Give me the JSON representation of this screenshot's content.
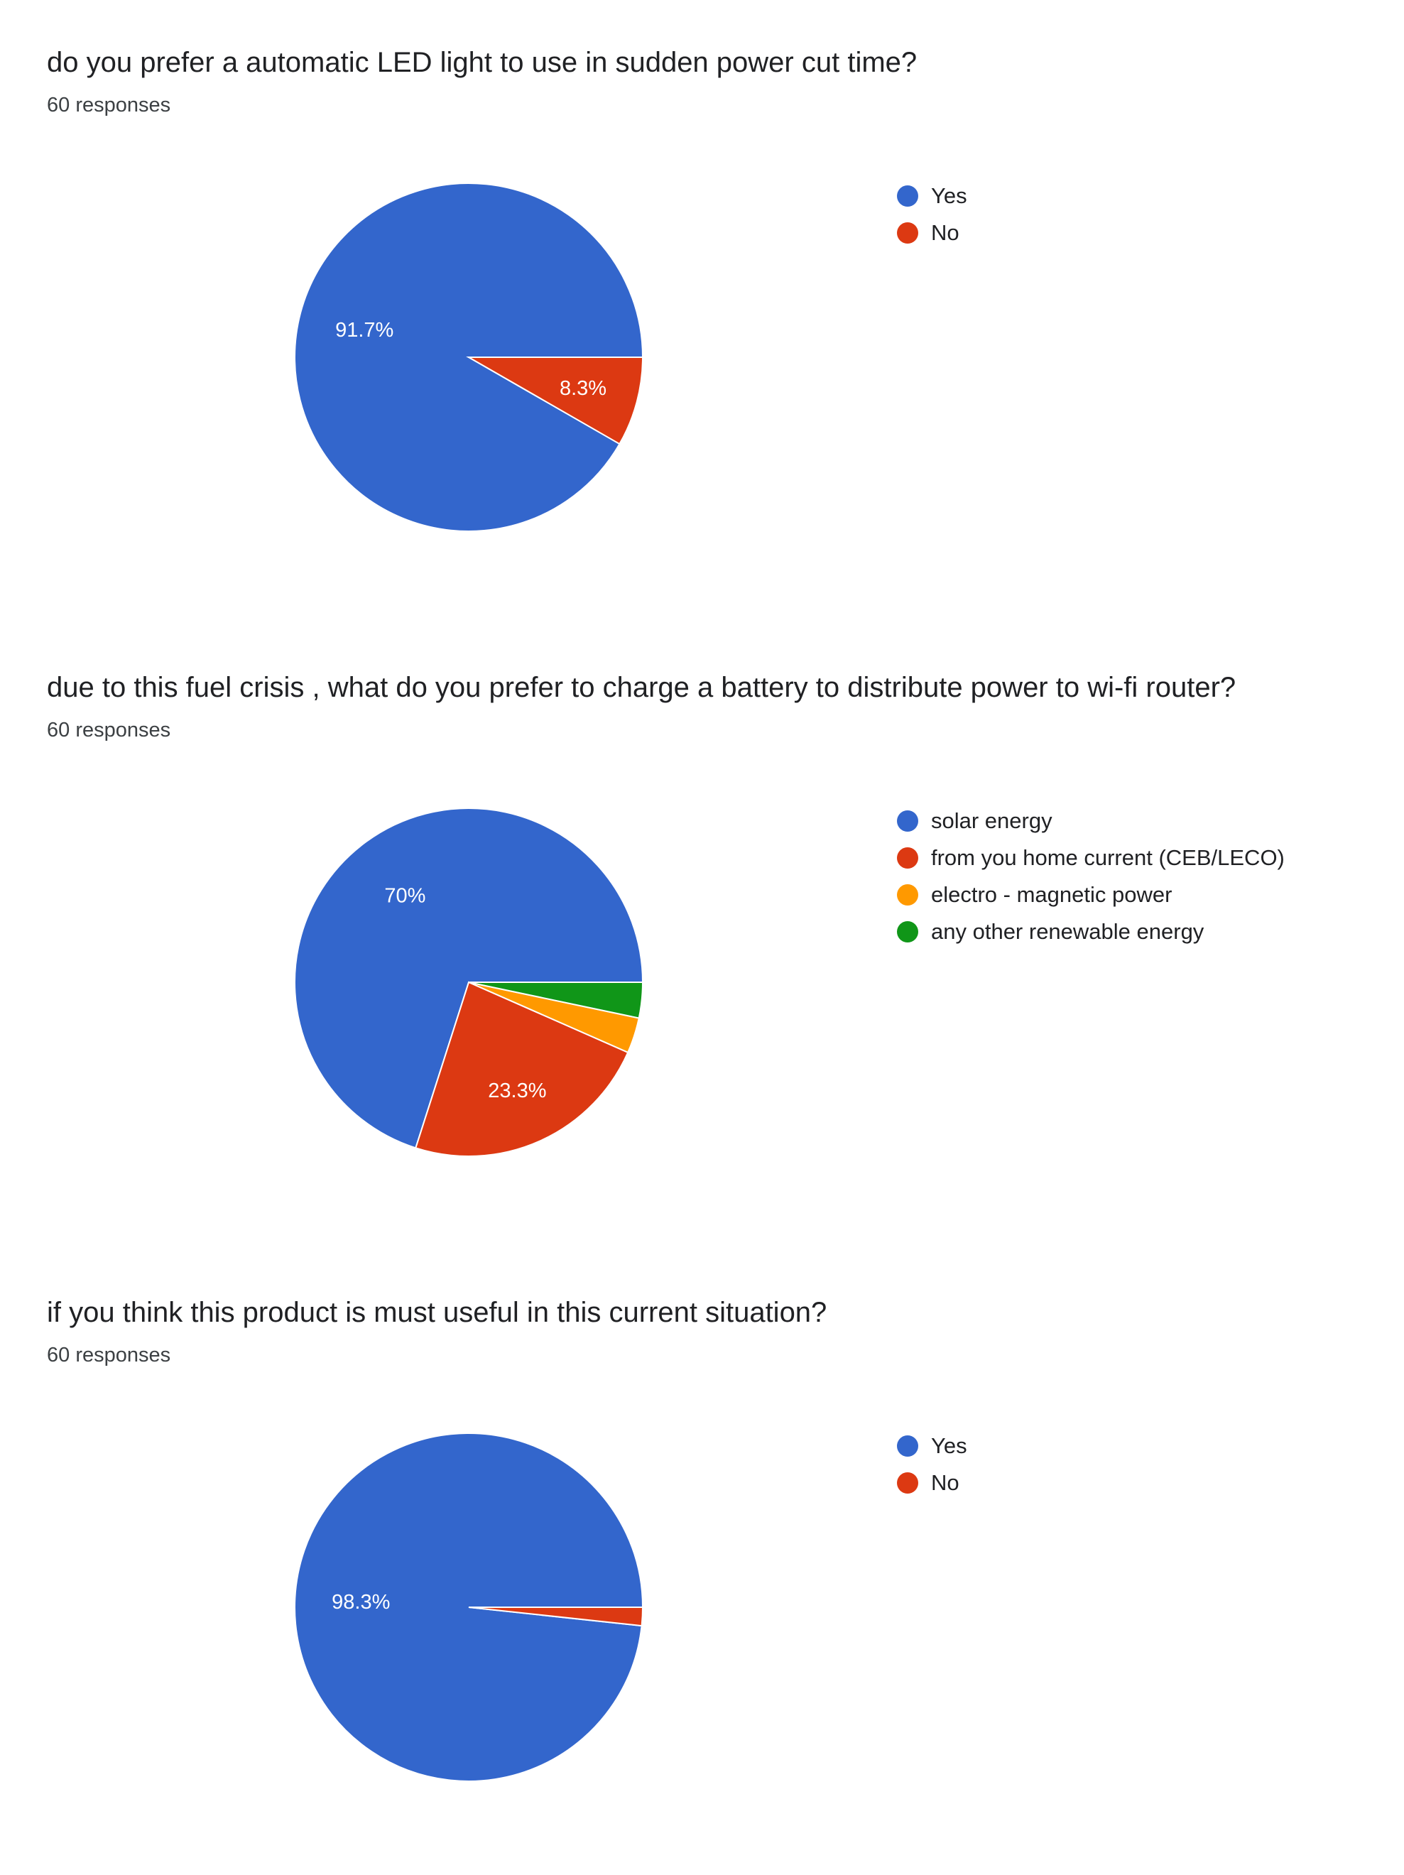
{
  "chart_data": [
    {
      "type": "pie",
      "title": "do you prefer a automatic LED light to use in sudden power cut time?",
      "subtitle": "60 responses",
      "legend_position": "right",
      "slices": [
        {
          "label": "Yes",
          "value": 91.7,
          "color": "#3366cc",
          "data_label": "91.7%"
        },
        {
          "label": "No",
          "value": 8.3,
          "color": "#dc3912",
          "data_label": "8.3%"
        }
      ]
    },
    {
      "type": "pie",
      "title": "due to this fuel crisis , what do you prefer to charge a battery to distribute power to wi-fi router?",
      "subtitle": "60 responses",
      "legend_position": "right",
      "slices": [
        {
          "label": "solar energy",
          "value": 70,
          "color": "#3366cc",
          "data_label": "70%"
        },
        {
          "label": "from you home current (CEB/LECO)",
          "value": 23.3,
          "color": "#dc3912",
          "data_label": "23.3%"
        },
        {
          "label": "electro - magnetic power",
          "value": 3.3,
          "color": "#ff9900",
          "data_label": ""
        },
        {
          "label": "any other renewable energy",
          "value": 3.3,
          "color": "#109618",
          "data_label": ""
        }
      ]
    },
    {
      "type": "pie",
      "title": "if you think this product  is must useful in this current situation?",
      "subtitle": "60 responses",
      "legend_position": "right",
      "slices": [
        {
          "label": "Yes",
          "value": 98.3,
          "color": "#3366cc",
          "data_label": "98.3%"
        },
        {
          "label": "No",
          "value": 1.7,
          "color": "#dc3912",
          "data_label": ""
        }
      ]
    }
  ]
}
